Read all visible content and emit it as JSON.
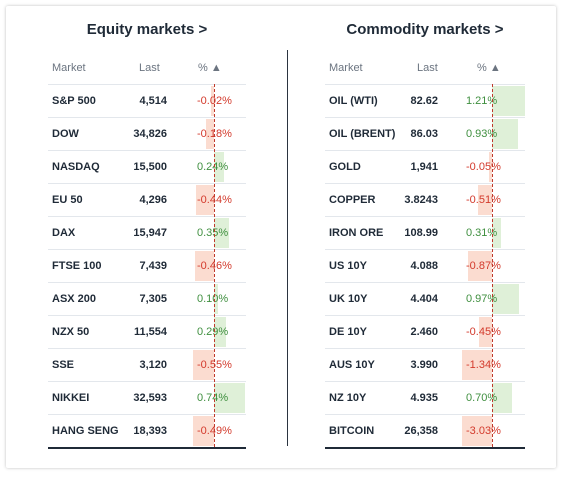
{
  "equity": {
    "title": "Equity markets >",
    "headers": {
      "market": "Market",
      "last": "Last",
      "pct": "% ▲"
    },
    "rows": [
      {
        "market": "S&P 500",
        "last": "4,514",
        "pct": "-0.02%",
        "value": -0.02
      },
      {
        "market": "DOW",
        "last": "34,826",
        "pct": "-0.18%",
        "value": -0.18
      },
      {
        "market": "NASDAQ",
        "last": "15,500",
        "pct": "0.24%",
        "value": 0.24
      },
      {
        "market": "EU 50",
        "last": "4,296",
        "pct": "-0.44%",
        "value": -0.44
      },
      {
        "market": "DAX",
        "last": "15,947",
        "pct": "0.35%",
        "value": 0.35
      },
      {
        "market": "FTSE 100",
        "last": "7,439",
        "pct": "-0.46%",
        "value": -0.46
      },
      {
        "market": "ASX 200",
        "last": "7,305",
        "pct": "0.10%",
        "value": 0.1
      },
      {
        "market": "NZX 50",
        "last": "11,554",
        "pct": "0.29%",
        "value": 0.29
      },
      {
        "market": "SSE",
        "last": "3,120",
        "pct": "-0.55%",
        "value": -0.55
      },
      {
        "market": "NIKKEI",
        "last": "32,593",
        "pct": "0.74%",
        "value": 0.74
      },
      {
        "market": "HANG SENG",
        "last": "18,393",
        "pct": "-0.49%",
        "value": -0.49
      }
    ]
  },
  "commodity": {
    "title": "Commodity markets >",
    "headers": {
      "market": "Market",
      "last": "Last",
      "pct": "% ▲"
    },
    "rows": [
      {
        "market": "OIL (WTI)",
        "last": "82.62",
        "pct": "1.21%",
        "value": 1.21
      },
      {
        "market": "OIL (BRENT)",
        "last": "86.03",
        "pct": "0.93%",
        "value": 0.93
      },
      {
        "market": "GOLD",
        "last": "1,941",
        "pct": "-0.05%",
        "value": -0.05
      },
      {
        "market": "COPPER",
        "last": "3.8243",
        "pct": "-0.51%",
        "value": -0.51
      },
      {
        "market": "IRON ORE",
        "last": "108.99",
        "pct": "0.31%",
        "value": 0.31
      },
      {
        "market": "US 10Y",
        "last": "4.088",
        "pct": "-0.87%",
        "value": -0.87
      },
      {
        "market": "UK 10Y",
        "last": "4.404",
        "pct": "0.97%",
        "value": 0.97
      },
      {
        "market": "DE 10Y",
        "last": "2.460",
        "pct": "-0.45%",
        "value": -0.45
      },
      {
        "market": "AUS 10Y",
        "last": "3.990",
        "pct": "-1.34%",
        "value": -1.34
      },
      {
        "market": "NZ 10Y",
        "last": "4.935",
        "pct": "0.70%",
        "value": 0.7
      },
      {
        "market": "BITCOIN",
        "last": "26,358",
        "pct": "-3.03%",
        "value": -3.03
      }
    ]
  },
  "colors": {
    "positive_text": "#3f8f3f",
    "negative_text": "#d33a2c",
    "positive_bar": "#dff0d8",
    "negative_bar": "#fbdcd0",
    "zero_line": "#c0392b"
  }
}
